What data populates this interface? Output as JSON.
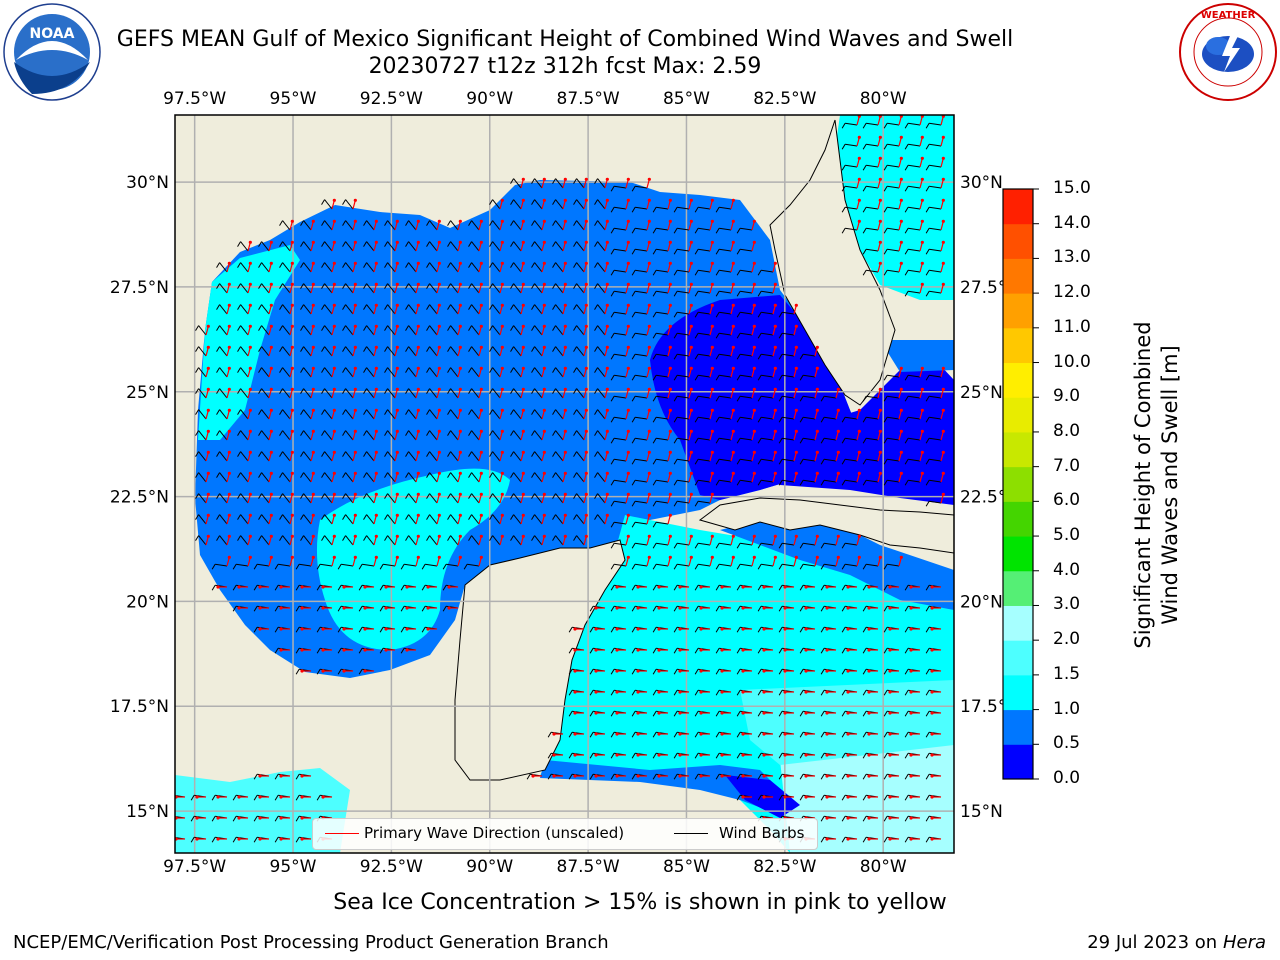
{
  "header": {
    "title_line1": "GEFS MEAN Gulf of Mexico Significant Height of Combined Wind Waves and Swell",
    "title_line2": "20230727 t12z 312h fcst   Max: 2.59"
  },
  "logos": {
    "left": {
      "name": "NOAA",
      "ring_text": "NATIONAL OCEANIC AND ATMOSPHERIC ADMINISTRATION · U.S. DEPARTMENT OF COMMERCE"
    },
    "right": {
      "name": "NATIONAL WEATHER SERVICE"
    }
  },
  "map": {
    "lon_ticks": [
      "97.5°W",
      "95°W",
      "92.5°W",
      "90°W",
      "87.5°W",
      "85°W",
      "82.5°W",
      "80°W"
    ],
    "lon_values": [
      -97.5,
      -95,
      -92.5,
      -90,
      -87.5,
      -85,
      -82.5,
      -80
    ],
    "lat_ticks_left": [
      "30°N",
      "27.5°N",
      "25°N",
      "22.5°N",
      "20°N",
      "17.5°N",
      "15°N"
    ],
    "lat_ticks_right": [
      "30°N",
      "27.5°",
      "25°N",
      "22.5°",
      "20°N",
      "17.5°",
      "15°N"
    ],
    "lat_values": [
      30,
      27.5,
      25,
      22.5,
      20,
      17.5,
      15
    ],
    "extent": {
      "lon": [
        -98,
        -78.2
      ],
      "lat": [
        14,
        31.6
      ]
    },
    "land_color": "#efeddc",
    "grid": true
  },
  "legend": {
    "wave_direction_label": "Primary Wave Direction (unscaled)",
    "wind_barbs_label": "Wind Barbs",
    "wave_direction_color": "#ff0000",
    "wind_barbs_color": "#000000"
  },
  "colorbar": {
    "label_line1": "Significant Height of Combined",
    "label_line2": "Wind Waves and Swell [m]",
    "ticks": [
      "0.0",
      "0.5",
      "1.0",
      "1.5",
      "2.0",
      "3.0",
      "4.0",
      "5.0",
      "6.0",
      "7.0",
      "8.0",
      "9.0",
      "10.0",
      "11.0",
      "12.0",
      "13.0",
      "14.0",
      "15.0"
    ],
    "colors": [
      "#0000ff",
      "#0077ff",
      "#00ffff",
      "#4dffff",
      "#a6ffff",
      "#55ef75",
      "#00e400",
      "#44d500",
      "#8ddf00",
      "#c8e800",
      "#e8ec00",
      "#ffee00",
      "#ffc800",
      "#ffa000",
      "#ff7800",
      "#ff5000",
      "#ff2000"
    ]
  },
  "chart_data": {
    "type": "heatmap",
    "variable": "Significant Height of Combined Wind Waves and Swell",
    "units": "m",
    "max": 2.59,
    "regions": [
      {
        "area": "central and northern Gulf",
        "range": [
          0.5,
          1.0
        ]
      },
      {
        "area": "eastern Gulf off west Florida",
        "range": [
          0.0,
          0.5
        ]
      },
      {
        "area": "western Gulf near Texas coast",
        "range": [
          1.0,
          1.5
        ]
      },
      {
        "area": "southwestern Gulf (Bay of Campeche)",
        "range": [
          1.0,
          1.5
        ]
      },
      {
        "area": "Atlantic east of Florida",
        "range": [
          1.0,
          1.5
        ]
      },
      {
        "area": "northwestern Caribbean",
        "range": [
          1.0,
          2.0
        ]
      },
      {
        "area": "central Caribbean south of Cuba",
        "range": [
          2.0,
          3.0
        ]
      }
    ]
  },
  "footer": {
    "note": "Sea Ice Concentration > 15% is shown in pink to yellow",
    "left": "NCEP/EMC/Verification Post Processing Product Generation Branch",
    "right_prefix": "29 Jul 2023 on ",
    "right_machine": "Hera"
  }
}
